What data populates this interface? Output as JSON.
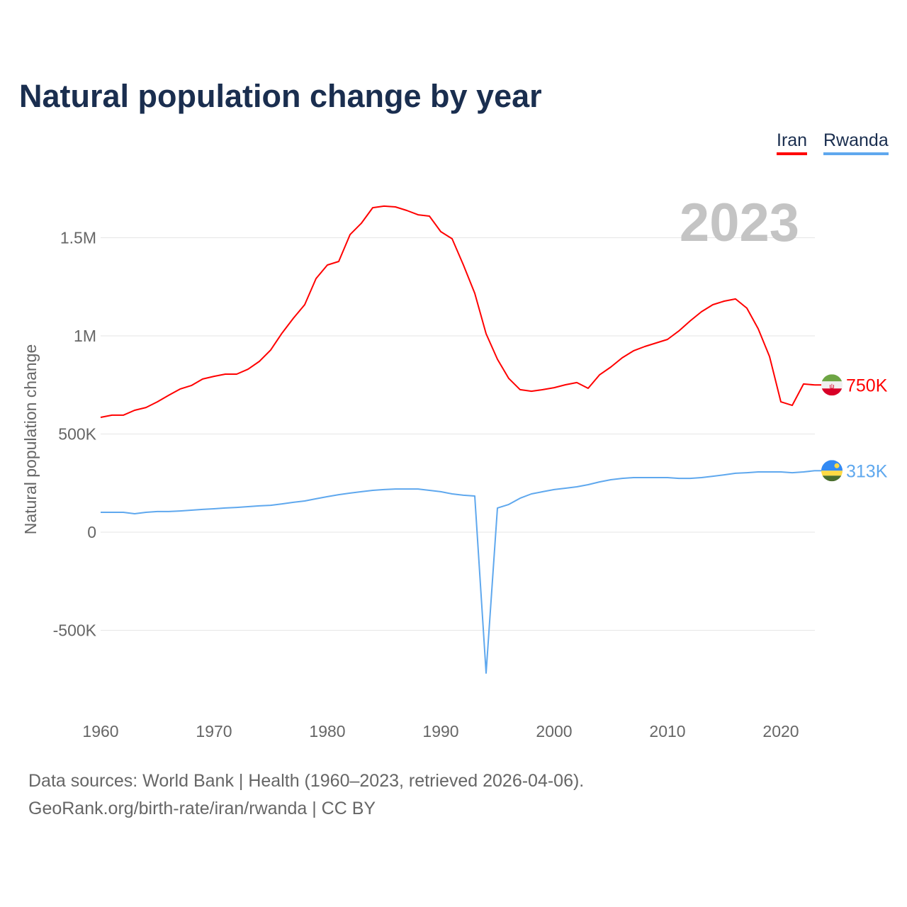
{
  "chart_data": {
    "type": "line",
    "title": "Natural population change by year",
    "ylabel": "Natural population change",
    "xlabel": "",
    "year_watermark": "2023",
    "xlim": [
      1960,
      2023
    ],
    "ylim": [
      -800000,
      1800000
    ],
    "x_ticks": [
      1960,
      1970,
      1980,
      1990,
      2000,
      2010,
      2020
    ],
    "x_tick_labels": [
      "1960",
      "1970",
      "1980",
      "1990",
      "2000",
      "2010",
      "2020"
    ],
    "y_ticks": [
      -500000,
      0,
      500000,
      1000000,
      1500000
    ],
    "y_tick_labels": [
      "-500K",
      "0",
      "500K",
      "1M",
      "1.5M"
    ],
    "grid": true,
    "legend_position": "top-right",
    "x": [
      1960,
      1961,
      1962,
      1963,
      1964,
      1965,
      1966,
      1967,
      1968,
      1969,
      1970,
      1971,
      1972,
      1973,
      1974,
      1975,
      1976,
      1977,
      1978,
      1979,
      1980,
      1981,
      1982,
      1983,
      1984,
      1985,
      1986,
      1987,
      1988,
      1989,
      1990,
      1991,
      1992,
      1993,
      1994,
      1995,
      1996,
      1997,
      1998,
      1999,
      2000,
      2001,
      2002,
      2003,
      2004,
      2005,
      2006,
      2007,
      2008,
      2009,
      2010,
      2011,
      2012,
      2013,
      2014,
      2015,
      2016,
      2017,
      2018,
      2019,
      2020,
      2021,
      2022,
      2023
    ],
    "series": [
      {
        "name": "Iran",
        "color": "#ff0000",
        "end_label": "750K",
        "flag": "iran-flag",
        "values": [
          585000,
          596000,
          596000,
          621000,
          635000,
          664000,
          697000,
          729000,
          747000,
          780000,
          794000,
          805000,
          805000,
          830000,
          870000,
          928000,
          1014000,
          1090000,
          1159000,
          1292000,
          1361000,
          1379000,
          1516000,
          1574000,
          1653000,
          1661000,
          1657000,
          1639000,
          1617000,
          1610000,
          1531000,
          1495000,
          1361000,
          1217000,
          1011000,
          881000,
          783000,
          726000,
          718000,
          726000,
          736000,
          751000,
          762000,
          733000,
          801000,
          841000,
          888000,
          924000,
          946000,
          964000,
          982000,
          1025000,
          1076000,
          1123000,
          1159000,
          1177000,
          1188000,
          1141000,
          1036000,
          895000,
          664000,
          646000,
          755000,
          750000
        ]
      },
      {
        "name": "Rwanda",
        "color": "#5fa8ee",
        "end_label": "313K",
        "flag": "rwanda-flag",
        "values": [
          101000,
          101000,
          101000,
          94000,
          101000,
          105000,
          105000,
          108000,
          112000,
          116000,
          119000,
          123000,
          126000,
          130000,
          134000,
          137000,
          144000,
          152000,
          159000,
          170000,
          181000,
          191000,
          199000,
          206000,
          213000,
          217000,
          220000,
          220000,
          220000,
          213000,
          206000,
          195000,
          188000,
          184000,
          -718000,
          123000,
          141000,
          173000,
          195000,
          206000,
          217000,
          224000,
          231000,
          242000,
          256000,
          267000,
          274000,
          278000,
          278000,
          278000,
          278000,
          274000,
          274000,
          278000,
          285000,
          292000,
          300000,
          303000,
          307000,
          307000,
          307000,
          303000,
          307000,
          313000
        ]
      }
    ]
  },
  "footer": {
    "line1": "Data sources: World Bank | Health (1960–2023, retrieved 2026-04-06).",
    "line2": "GeoRank.org/birth-rate/iran/rwanda | CC BY"
  }
}
